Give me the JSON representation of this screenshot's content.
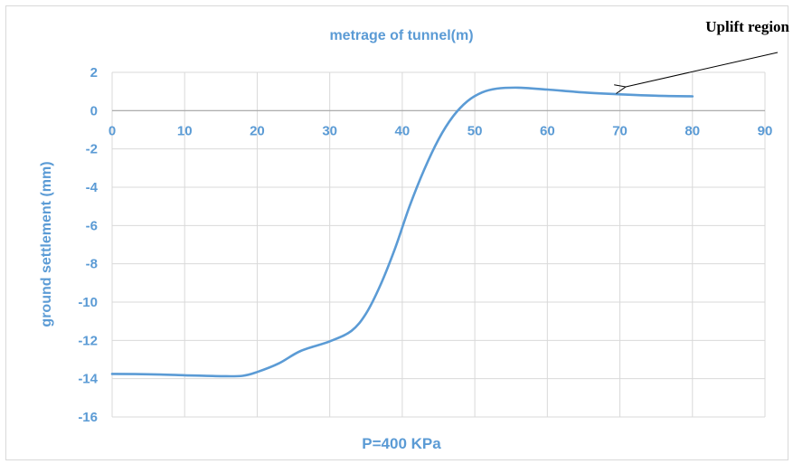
{
  "chart_data": {
    "type": "line",
    "title": "metrage of tunnel(m)",
    "xlabel": "P=400 KPa",
    "ylabel": "ground settlement (mm)",
    "xlim": [
      0,
      90
    ],
    "ylim": [
      -16,
      2
    ],
    "x_ticks": [
      0,
      10,
      20,
      30,
      40,
      50,
      60,
      70,
      80,
      90
    ],
    "y_ticks": [
      2,
      0,
      -2,
      -4,
      -6,
      -8,
      -10,
      -12,
      -14,
      -16
    ],
    "x_tick_labels": [
      "0",
      "10",
      "20",
      "30",
      "40",
      "50",
      "60",
      "70",
      "80",
      "90"
    ],
    "y_tick_labels": [
      "2",
      "0",
      "-2",
      "-4",
      "-6",
      "-8",
      "-10",
      "-12",
      "-14",
      "-16"
    ],
    "grid": true,
    "series": [
      {
        "x": [
          0,
          5,
          10,
          15,
          18,
          20,
          23,
          26,
          30,
          33,
          35,
          37,
          39,
          41,
          43,
          45,
          47,
          49,
          51,
          53,
          56,
          60,
          65,
          70,
          75,
          80
        ],
        "y": [
          -13.75,
          -13.77,
          -13.82,
          -13.87,
          -13.85,
          -13.65,
          -13.2,
          -12.55,
          -12.05,
          -11.5,
          -10.6,
          -9.1,
          -7.2,
          -5.0,
          -3.1,
          -1.5,
          -0.3,
          0.5,
          0.95,
          1.15,
          1.2,
          1.1,
          0.95,
          0.85,
          0.78,
          0.75
        ]
      }
    ],
    "annotation": {
      "text": "Uplift region",
      "points_to": [
        70,
        0.85
      ]
    },
    "colors": {
      "line": "#5b9bd5",
      "text": "#5b9bd5",
      "axis": "#a6a6a6",
      "grid": "#d9d9d9",
      "annotation": "#000000"
    }
  }
}
